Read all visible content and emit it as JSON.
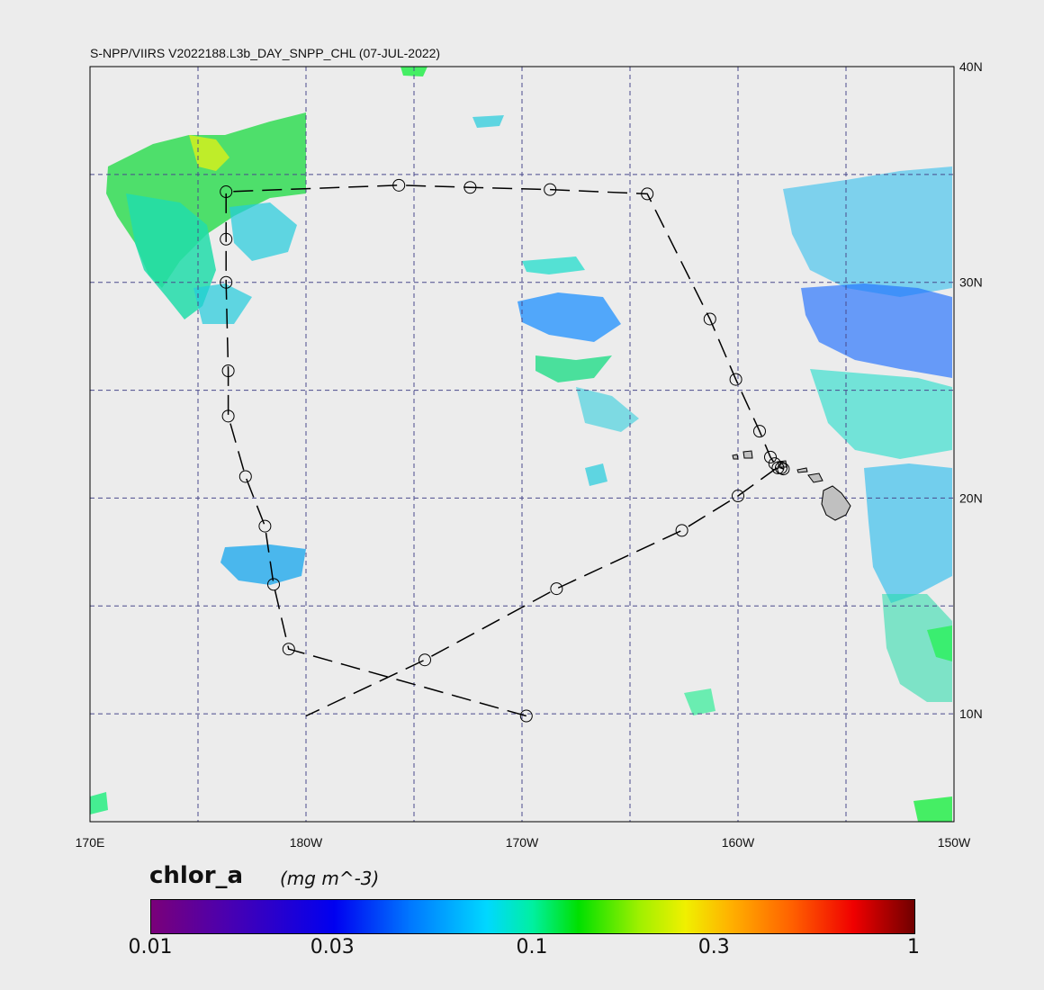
{
  "title": "S-NPP/VIIRS V2022188.L3b_DAY_SNPP_CHL (07-JUL-2022)",
  "map": {
    "lon_range": [
      170,
      210
    ],
    "lat_range": [
      5,
      40
    ],
    "lon_gridlines": [
      175,
      180,
      185,
      190,
      195,
      200,
      205
    ],
    "lat_gridlines": [
      10,
      15,
      20,
      25,
      30,
      35
    ],
    "lon_tick_labels": [
      {
        "lon": 170,
        "label": "170E"
      },
      {
        "lon": 180,
        "label": "180W"
      },
      {
        "lon": 190,
        "label": "170W"
      },
      {
        "lon": 200,
        "label": "160W"
      },
      {
        "lon": 210,
        "label": "150W"
      }
    ],
    "lat_tick_labels": [
      {
        "lat": 40,
        "label": "40N"
      },
      {
        "lat": 30,
        "label": "30N"
      },
      {
        "lat": 20,
        "label": "20N"
      },
      {
        "lat": 10,
        "label": "10N"
      }
    ],
    "grid_color": "#4a4a8c",
    "land_color": "#c0c0c0",
    "track_color": "#000000"
  },
  "track_points": [
    {
      "lon": 190.2,
      "lat": 9.9
    },
    {
      "lon": 179.2,
      "lat": 13.0
    },
    {
      "lon": 178.5,
      "lat": 16.0
    },
    {
      "lon": 178.1,
      "lat": 18.7
    },
    {
      "lon": 177.2,
      "lat": 21.0
    },
    {
      "lon": 176.4,
      "lat": 23.8
    },
    {
      "lon": 176.4,
      "lat": 25.9
    },
    {
      "lon": 176.3,
      "lat": 30.0
    },
    {
      "lon": 176.3,
      "lat": 32.0
    },
    {
      "lon": 176.3,
      "lat": 34.2
    },
    {
      "lon": 184.3,
      "lat": 34.5
    },
    {
      "lon": 187.6,
      "lat": 34.4
    },
    {
      "lon": 191.3,
      "lat": 34.3
    },
    {
      "lon": 195.8,
      "lat": 34.1
    },
    {
      "lon": 198.7,
      "lat": 28.3
    },
    {
      "lon": 199.9,
      "lat": 25.5
    },
    {
      "lon": 201.0,
      "lat": 23.1
    },
    {
      "lon": 201.5,
      "lat": 21.9
    },
    {
      "lon": 201.7,
      "lat": 21.6
    },
    {
      "lon": 201.85,
      "lat": 21.4
    },
    {
      "lon": 202.0,
      "lat": 21.4
    },
    {
      "lon": 202.1,
      "lat": 21.35
    }
  ],
  "track_return": [
    {
      "lon": 201.8,
      "lat": 21.4
    },
    {
      "lon": 200.0,
      "lat": 20.1
    },
    {
      "lon": 197.4,
      "lat": 18.5
    },
    {
      "lon": 191.6,
      "lat": 15.8
    },
    {
      "lon": 185.5,
      "lat": 12.5
    },
    {
      "lon": 180.0,
      "lat": 9.9
    }
  ],
  "colorbar": {
    "variable": "chlor_a",
    "units": "(mg m^-3)",
    "scale": "log",
    "range": [
      0.01,
      1
    ],
    "tick_labels": [
      {
        "value": 0.01,
        "label": "0.01"
      },
      {
        "value": 0.03,
        "label": "0.03"
      },
      {
        "value": 0.1,
        "label": "0.1"
      },
      {
        "value": 0.3,
        "label": "0.3"
      },
      {
        "value": 1,
        "label": "1"
      }
    ]
  }
}
